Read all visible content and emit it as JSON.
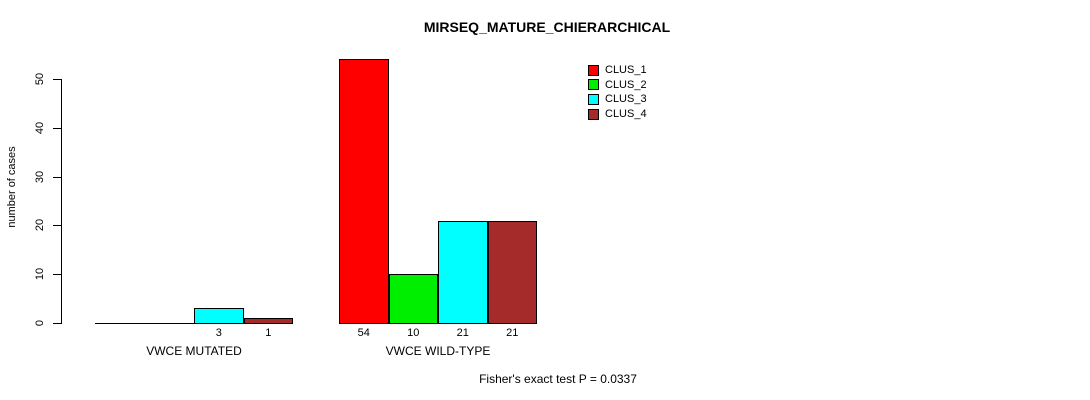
{
  "chart_data": {
    "type": "bar",
    "title": "MIRSEQ_MATURE_CHIERARCHICAL",
    "ylabel": "number of cases",
    "xlabel": "",
    "ylim": [
      0,
      50
    ],
    "yticks": [
      0,
      10,
      20,
      30,
      40,
      50
    ],
    "categories": [
      "VWCE MUTATED",
      "VWCE WILD-TYPE"
    ],
    "series": [
      {
        "name": "CLUS_1",
        "color": "#FF0000",
        "values": [
          0,
          54
        ]
      },
      {
        "name": "CLUS_2",
        "color": "#00EE00",
        "values": [
          0,
          10
        ]
      },
      {
        "name": "CLUS_3",
        "color": "#00FFFF",
        "values": [
          3,
          21
        ]
      },
      {
        "name": "CLUS_4",
        "color": "#A52A2A",
        "values": [
          1,
          21
        ]
      }
    ],
    "bar_value_labels_shown": [
      "3",
      "1",
      "54",
      "10",
      "21",
      "21"
    ],
    "zero_value_labels_hidden": true,
    "annotation": "Fisher's exact test P = 0.0337",
    "legend_position": "top-right",
    "grid": false,
    "axis_color": "#000000",
    "bar_border_color": "#000000",
    "background_color": "#FFFFFF"
  }
}
